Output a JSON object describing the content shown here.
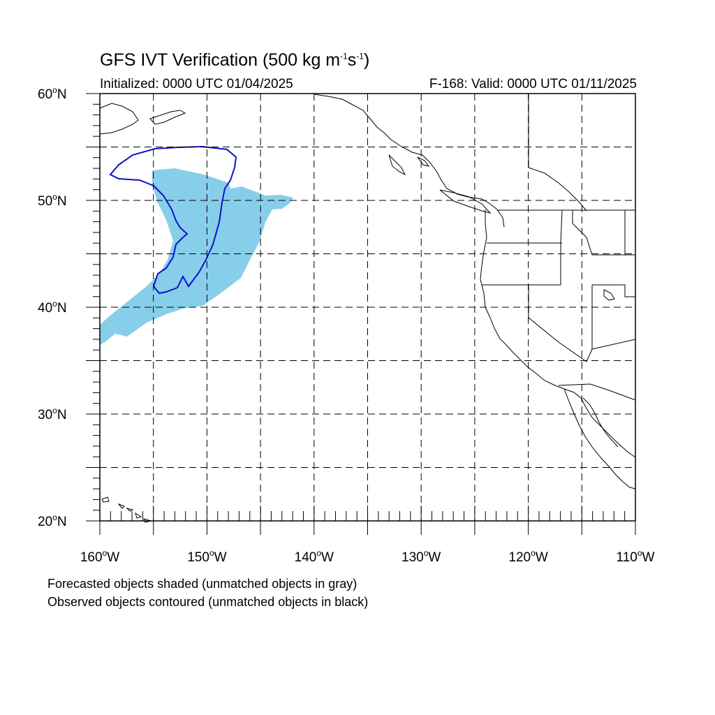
{
  "header": {
    "title_main": "GFS IVT Verification (500 kg m",
    "title_sup1": "-1",
    "title_mid": "s",
    "title_sup2": "-1",
    "title_end": ")",
    "initialized": "Initialized: 0000 UTC 01/04/2025",
    "valid": "F-168: Valid: 0000 UTC 01/11/2025"
  },
  "map": {
    "lon_range": [
      -160,
      -110
    ],
    "lat_range": [
      20,
      60
    ],
    "lat_labels": [
      {
        "deg": "60",
        "hemi": "N",
        "lat": 60
      },
      {
        "deg": "50",
        "hemi": "N",
        "lat": 50
      },
      {
        "deg": "40",
        "hemi": "N",
        "lat": 40
      },
      {
        "deg": "30",
        "hemi": "N",
        "lat": 30
      },
      {
        "deg": "20",
        "hemi": "N",
        "lat": 20
      }
    ],
    "lon_labels": [
      {
        "deg": "160",
        "hemi": "W",
        "lon": -160
      },
      {
        "deg": "150",
        "hemi": "W",
        "lon": -150
      },
      {
        "deg": "140",
        "hemi": "W",
        "lon": -140
      },
      {
        "deg": "130",
        "hemi": "W",
        "lon": -130
      },
      {
        "deg": "120",
        "hemi": "W",
        "lon": -120
      },
      {
        "deg": "110",
        "hemi": "W",
        "lon": -110
      }
    ],
    "gridlines": true,
    "colors": {
      "forecast_fill": "#87CEEB",
      "observed_contour": "#1010CC",
      "coastline": "#000000",
      "grid": "#000000"
    }
  },
  "footer": {
    "note1": "Forecasted objects shaded (unmatched objects in gray)",
    "note2": "Observed objects contoured (unmatched objects in black)"
  }
}
